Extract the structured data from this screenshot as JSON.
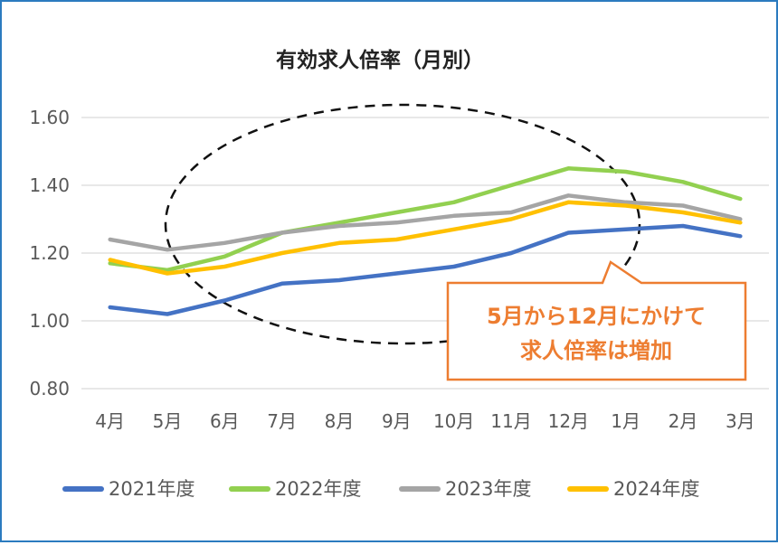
{
  "chart_data": {
    "type": "line",
    "title": "有効求人倍率（月別）",
    "xlabel": "",
    "ylabel": "",
    "categories": [
      "4月",
      "5月",
      "6月",
      "7月",
      "8月",
      "9月",
      "10月",
      "11月",
      "12月",
      "1月",
      "2月",
      "3月"
    ],
    "ylim": [
      0.8,
      1.6
    ],
    "yticks": [
      "0.80",
      "1.00",
      "1.20",
      "1.40",
      "1.60"
    ],
    "grid": true,
    "legend_position": "bottom",
    "series": [
      {
        "name": "2021年度",
        "color": "#4472c4",
        "values": [
          1.04,
          1.02,
          1.06,
          1.11,
          1.12,
          1.14,
          1.16,
          1.2,
          1.26,
          1.27,
          1.28,
          1.25
        ]
      },
      {
        "name": "2022年度",
        "color": "#92d050",
        "values": [
          1.17,
          1.15,
          1.19,
          1.26,
          1.29,
          1.32,
          1.35,
          1.4,
          1.45,
          1.44,
          1.41,
          1.36
        ]
      },
      {
        "name": "2023年度",
        "color": "#a5a5a5",
        "values": [
          1.24,
          1.21,
          1.23,
          1.26,
          1.28,
          1.29,
          1.31,
          1.32,
          1.37,
          1.35,
          1.34,
          1.3
        ]
      },
      {
        "name": "2024年度",
        "color": "#ffc000",
        "values": [
          1.18,
          1.14,
          1.16,
          1.2,
          1.23,
          1.24,
          1.27,
          1.3,
          1.35,
          1.34,
          1.32,
          1.29
        ]
      }
    ],
    "annotation": {
      "lines": [
        "5月から12月にかけて",
        "求人倍率は増加"
      ],
      "color": "#ed7d31"
    }
  }
}
